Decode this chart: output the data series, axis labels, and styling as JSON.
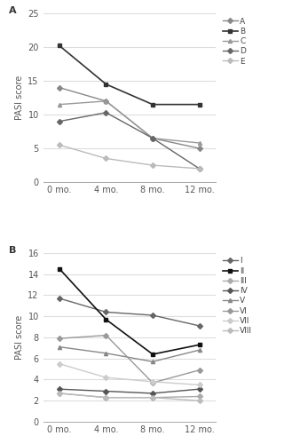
{
  "x_labels": [
    "0 mo.",
    "4 mo.",
    "8 mo.",
    "12 mo."
  ],
  "x_values": [
    0,
    1,
    2,
    3
  ],
  "panel_A": {
    "series_order": [
      "A",
      "B",
      "C",
      "D",
      "E"
    ],
    "series": {
      "A": [
        14.0,
        12.0,
        6.5,
        5.0
      ],
      "B": [
        20.2,
        14.5,
        11.5,
        11.5
      ],
      "C": [
        11.5,
        12.0,
        6.5,
        5.8
      ],
      "D": [
        9.0,
        10.3,
        6.5,
        2.0
      ],
      "E": [
        5.5,
        3.5,
        2.5,
        2.0
      ]
    },
    "ylim": [
      0,
      25
    ],
    "yticks": [
      0,
      5,
      10,
      15,
      20,
      25
    ],
    "ylabel": "PASI score",
    "label": "A"
  },
  "panel_B": {
    "series_order": [
      "I",
      "II",
      "III",
      "IV",
      "V",
      "VI",
      "VII",
      "VIII"
    ],
    "series": {
      "I": [
        11.7,
        10.4,
        10.1,
        9.1
      ],
      "II": [
        14.5,
        9.7,
        6.4,
        7.3
      ],
      "III": [
        2.7,
        2.3,
        2.3,
        2.4
      ],
      "IV": [
        3.1,
        2.9,
        2.7,
        3.1
      ],
      "V": [
        7.1,
        6.5,
        5.7,
        6.8
      ],
      "VI": [
        7.9,
        8.2,
        3.7,
        4.9
      ],
      "VII": [
        5.5,
        4.2,
        3.8,
        3.5
      ],
      "VIII": [
        2.7,
        2.3,
        2.3,
        2.0
      ]
    },
    "ylim": [
      0,
      16
    ],
    "yticks": [
      0,
      2,
      4,
      6,
      8,
      10,
      12,
      14,
      16
    ],
    "ylabel": "PASI score",
    "label": "B"
  },
  "markers_A": {
    "A": {
      "marker": "D",
      "ms": 3.0,
      "color": "#888888",
      "lw": 1.0
    },
    "B": {
      "marker": "s",
      "ms": 3.0,
      "color": "#333333",
      "lw": 1.2
    },
    "C": {
      "marker": "^",
      "ms": 3.0,
      "color": "#999999",
      "lw": 1.0
    },
    "D": {
      "marker": "D",
      "ms": 3.0,
      "color": "#666666",
      "lw": 1.0
    },
    "E": {
      "marker": "D",
      "ms": 3.0,
      "color": "#bbbbbb",
      "lw": 1.0
    }
  },
  "markers_B": {
    "I": {
      "marker": "D",
      "ms": 3.0,
      "color": "#666666",
      "lw": 1.0
    },
    "II": {
      "marker": "s",
      "ms": 3.0,
      "color": "#111111",
      "lw": 1.2
    },
    "III": {
      "marker": "D",
      "ms": 3.0,
      "color": "#aaaaaa",
      "lw": 1.0
    },
    "IV": {
      "marker": "D",
      "ms": 3.0,
      "color": "#555555",
      "lw": 1.0
    },
    "V": {
      "marker": "^",
      "ms": 3.0,
      "color": "#888888",
      "lw": 1.0
    },
    "VI": {
      "marker": "D",
      "ms": 3.0,
      "color": "#999999",
      "lw": 1.0
    },
    "VII": {
      "marker": "D",
      "ms": 3.0,
      "color": "#cccccc",
      "lw": 1.0
    },
    "VIII": {
      "marker": "D",
      "ms": 3.0,
      "color": "#bbbbbb",
      "lw": 1.0
    }
  },
  "bg_color": "#ffffff",
  "grid_color": "#dddddd",
  "font_size": 7,
  "legend_font_size": 6.5,
  "tick_label_color": "#555555"
}
